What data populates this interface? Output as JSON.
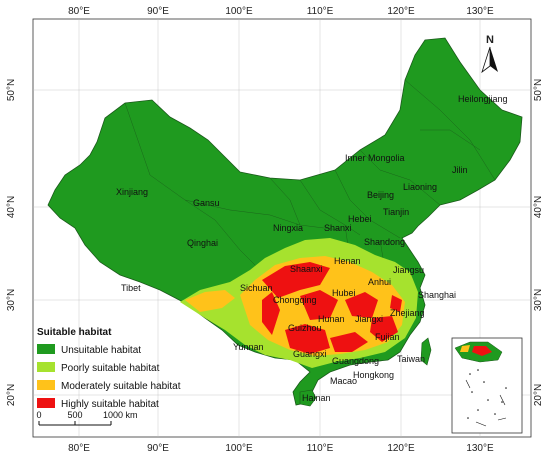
{
  "axes": {
    "top_ticks": [
      "80°E",
      "90°E",
      "100°E",
      "110°E",
      "120°E",
      "130°E"
    ],
    "bottom_ticks": [
      "80°E",
      "90°E",
      "100°E",
      "110°E",
      "120°E",
      "130°E"
    ],
    "left_ticks": [
      "50°N",
      "40°N",
      "30°N",
      "20°N"
    ],
    "right_ticks": [
      "50°N",
      "40°N",
      "30°N",
      "20°N"
    ]
  },
  "north_arrow": {
    "label": "N"
  },
  "regions": [
    "Heilongjiang",
    "Jilin",
    "Liaoning",
    "Inner Mongolia",
    "Beijing",
    "Tianjin",
    "Hebei",
    "Shanxi",
    "Shandong",
    "Henan",
    "Jiangsu",
    "Shanghai",
    "Anhui",
    "Hubei",
    "Zhejiang",
    "Jiangxi",
    "Fujian",
    "Taiwan",
    "Hunan",
    "Guangdong",
    "Hongkong",
    "Macao",
    "Hainan",
    "Guangxi",
    "Guizhou",
    "Chongqing",
    "Sichuan",
    "Yunnan",
    "Tibet",
    "Qinghai",
    "Gansu",
    "Ningxia",
    "Shaanxi",
    "Xinjiang"
  ],
  "legend": {
    "title": "Suitable habitat",
    "items": [
      {
        "label": "Unsuitable habitat",
        "color": "#1f9a1f"
      },
      {
        "label": "Poorly suitable habitat",
        "color": "#a6e22e"
      },
      {
        "label": "Moderately suitable habitat",
        "color": "#ffc21a"
      },
      {
        "label": "Highly suitable habitat",
        "color": "#ee1111"
      }
    ]
  },
  "scale_bar": {
    "labels": [
      "0",
      "500",
      "1000 km"
    ]
  }
}
